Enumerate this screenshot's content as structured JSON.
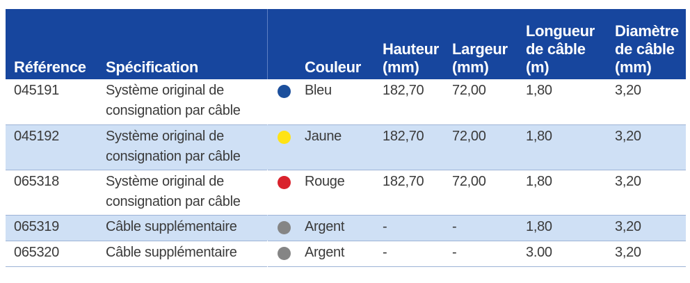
{
  "headers": {
    "reference": "Référence",
    "specification": "Spécification",
    "couleur": "Couleur",
    "hauteur_1": "Hauteur",
    "hauteur_2": "(mm)",
    "largeur_1": "Largeur",
    "largeur_2": "(mm)",
    "longueur_1": "Longueur",
    "longueur_2": "de câble",
    "longueur_3": "(m)",
    "diametre_1": "Diamètre",
    "diametre_2": "de câble",
    "diametre_3": "(mm)"
  },
  "rows": [
    {
      "reference": "045191",
      "spec_1": "Système original de",
      "spec_2": "consignation par câble",
      "dot_color": "#1c4f9c",
      "color_name": "Bleu",
      "hauteur": "182,70",
      "largeur": "72,00",
      "longueur": "1,80",
      "diametre": "3,20"
    },
    {
      "reference": "045192",
      "spec_1": "Système original de",
      "spec_2": "consignation par câble",
      "dot_color": "#ffe316",
      "color_name": "Jaune",
      "hauteur": "182,70",
      "largeur": "72,00",
      "longueur": "1,80",
      "diametre": "3,20"
    },
    {
      "reference": "065318",
      "spec_1": "Système original de",
      "spec_2": "consignation par câble",
      "dot_color": "#d9222c",
      "color_name": "Rouge",
      "hauteur": "182,70",
      "largeur": "72,00",
      "longueur": "1,80",
      "diametre": "3,20"
    },
    {
      "reference": "065319",
      "spec_1": "Câble supplémentaire",
      "spec_2": "",
      "dot_color": "#858585",
      "color_name": "Argent",
      "hauteur": "-",
      "largeur": "-",
      "longueur": "1,80",
      "diametre": "3,20"
    },
    {
      "reference": "065320",
      "spec_1": "Câble supplémentaire",
      "spec_2": "",
      "dot_color": "#858585",
      "color_name": "Argent",
      "hauteur": "-",
      "largeur": "-",
      "longueur": "3.00",
      "diametre": "3,20"
    }
  ]
}
